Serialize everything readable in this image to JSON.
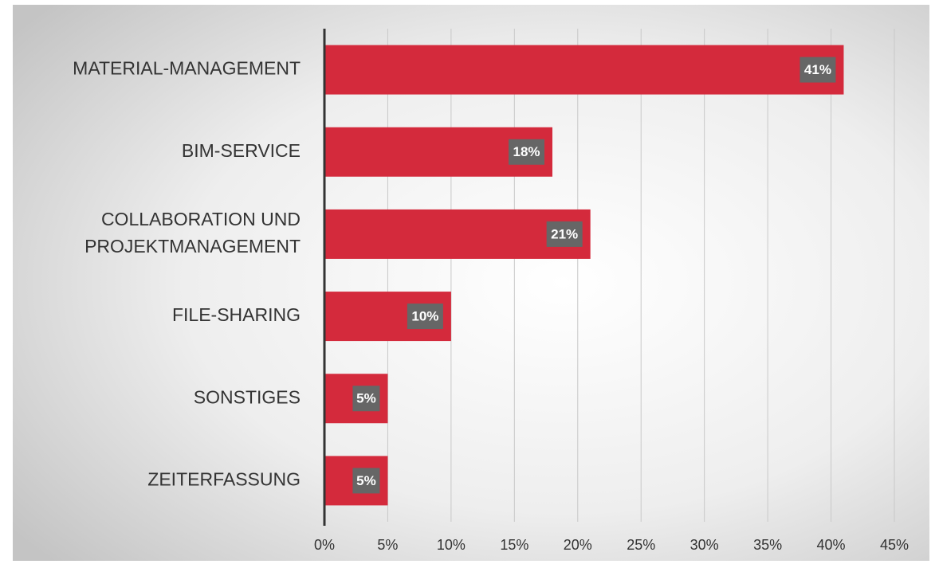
{
  "chart_data": {
    "type": "bar",
    "orientation": "horizontal",
    "categories": [
      "MATERIAL-MANAGEMENT",
      "BIM-SERVICE",
      "COLLABORATION UND\nPROJEKTMANAGEMENT",
      "FILE-SHARING",
      "SONSTIGES",
      "ZEITERFASSUNG"
    ],
    "values": [
      41,
      18,
      21,
      10,
      5,
      5
    ],
    "value_labels": [
      "41%",
      "18%",
      "21%",
      "10%",
      "5%",
      "5%"
    ],
    "color": "#d42a3c",
    "xlim": [
      0,
      45
    ],
    "xticks": [
      {
        "value": 0,
        "label": "0%"
      },
      {
        "value": 5,
        "label": "5%"
      },
      {
        "value": 10,
        "label": "10%"
      },
      {
        "value": 15,
        "label": "15%"
      },
      {
        "value": 20,
        "label": "20%"
      },
      {
        "value": 25,
        "label": "25%"
      },
      {
        "value": 30,
        "label": "30%"
      },
      {
        "value": 35,
        "label": "35%"
      },
      {
        "value": 40,
        "label": "40%"
      },
      {
        "value": 45,
        "label": "45%"
      }
    ],
    "grid": true
  }
}
